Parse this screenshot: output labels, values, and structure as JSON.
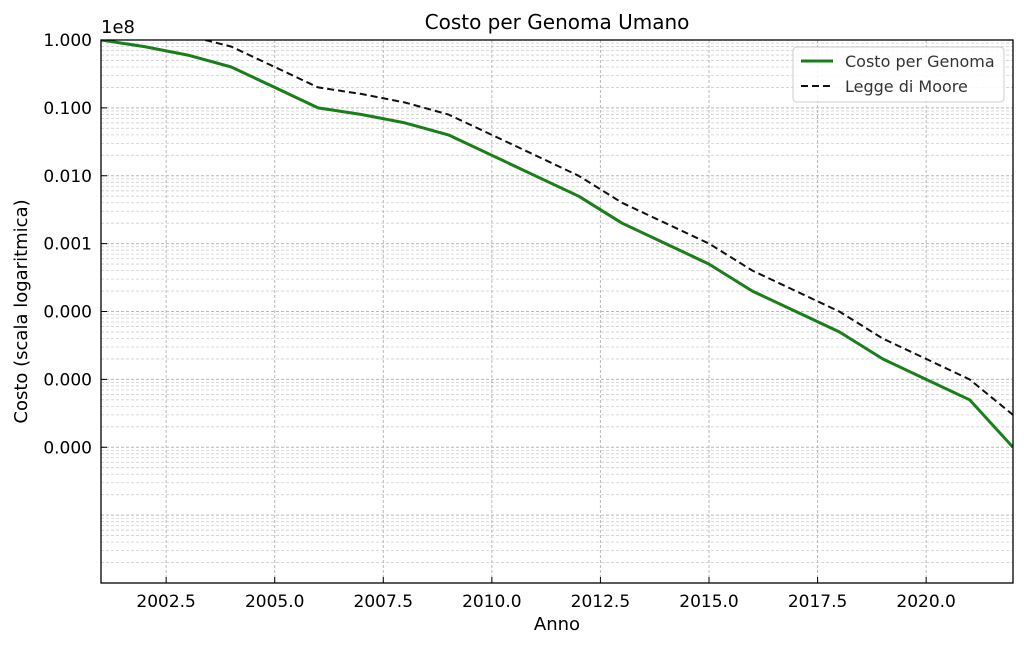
{
  "chart_data": {
    "type": "line",
    "title": "Costo per Genoma Umano",
    "xlabel": "Anno",
    "ylabel": "Costo (scala logaritmica)",
    "y_offset_label": "1e8",
    "y_scale": "log",
    "xlim": [
      2001,
      2022
    ],
    "ylim": [
      1e-08,
      1
    ],
    "grid": true,
    "grid_minor": true,
    "legend_position": "top-right",
    "x_tick_labels": [
      "2002.5",
      "2005.0",
      "2007.5",
      "2010.0",
      "2012.5",
      "2015.0",
      "2017.5",
      "2020.0"
    ],
    "x_ticks": [
      2002.5,
      2005,
      2007.5,
      2010,
      2012.5,
      2015,
      2017.5,
      2020
    ],
    "y_ticks": [
      1,
      0.1,
      0.01,
      0.001,
      0.0001,
      1e-05,
      1e-06
    ],
    "y_tick_labels": [
      "1.000",
      "0.100",
      "0.010",
      "0.001",
      "0.000",
      "0.000",
      "0.000"
    ],
    "series": [
      {
        "name": "Costo per Genoma",
        "color": "#1a7f1a",
        "style": "solid",
        "x": [
          2001,
          2002,
          2003,
          2004,
          2005,
          2006,
          2007,
          2008,
          2009,
          2010,
          2011,
          2012,
          2013,
          2014,
          2015,
          2016,
          2017,
          2018,
          2019,
          2020,
          2021,
          2022
        ],
        "y": [
          1.0,
          0.8,
          0.6,
          0.4,
          0.2,
          0.1,
          0.08,
          0.06,
          0.04,
          0.02,
          0.01,
          0.005,
          0.002,
          0.001,
          0.0005,
          0.0002,
          0.0001,
          5e-05,
          2e-05,
          1e-05,
          5e-06,
          1e-06
        ]
      },
      {
        "name": "Legge di Moore",
        "color": "#111111",
        "style": "dashed",
        "x": [
          2003.4,
          2004,
          2005,
          2006,
          2007,
          2008,
          2009,
          2010,
          2011,
          2012,
          2013,
          2014,
          2015,
          2016,
          2017,
          2018,
          2019,
          2020,
          2021,
          2022
        ],
        "y": [
          1.0,
          0.8,
          0.4,
          0.2,
          0.16,
          0.12,
          0.08,
          0.04,
          0.02,
          0.01,
          0.004,
          0.002,
          0.001,
          0.0004,
          0.0002,
          0.0001,
          4e-05,
          2e-05,
          1e-05,
          3e-06
        ]
      }
    ]
  }
}
